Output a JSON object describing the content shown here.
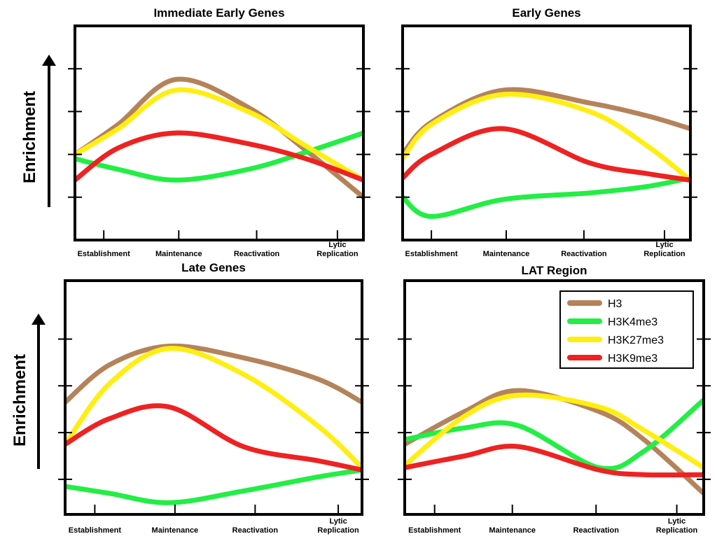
{
  "ylabel": "Enrichment",
  "legend": {
    "placement": "top-right of LAT Region panel",
    "entries": [
      {
        "name": "H3",
        "color": "#b5835a"
      },
      {
        "name": "H3K4me3",
        "color": "#22ee44"
      },
      {
        "name": "H3K27me3",
        "color": "#ffee11"
      },
      {
        "name": "H3K9me3",
        "color": "#ee2222"
      }
    ]
  },
  "chart_data": [
    {
      "type": "line",
      "title": "Immediate Early Genes",
      "xlabel": "",
      "ylabel": "Enrichment",
      "ylim": [
        0,
        5
      ],
      "categories": [
        "Establishment",
        "Maintenance",
        "Reactivation",
        "Lytic Replication"
      ],
      "x": [
        0,
        0.15,
        0.35,
        0.6,
        0.8,
        1
      ],
      "series": [
        {
          "name": "H3",
          "color": "#b5835a",
          "values": [
            2.0,
            2.7,
            3.75,
            3.1,
            2.1,
            1.0
          ]
        },
        {
          "name": "H3K4me3",
          "color": "#22ee44",
          "values": [
            1.9,
            1.65,
            1.4,
            1.65,
            2.05,
            2.5
          ]
        },
        {
          "name": "H3K27me3",
          "color": "#ffee11",
          "values": [
            2.0,
            2.6,
            3.5,
            3.0,
            2.2,
            1.4
          ]
        },
        {
          "name": "H3K9me3",
          "color": "#ee2222",
          "values": [
            1.4,
            2.15,
            2.5,
            2.25,
            1.9,
            1.4
          ]
        }
      ]
    },
    {
      "type": "line",
      "title": "Early Genes",
      "xlabel": "",
      "ylabel": "",
      "ylim": [
        0,
        5
      ],
      "categories": [
        "Establishment",
        "Maintenance",
        "Reactivation",
        "Lytic Replication"
      ],
      "x": [
        0,
        0.1,
        0.35,
        0.65,
        0.85,
        1
      ],
      "series": [
        {
          "name": "H3",
          "color": "#b5835a",
          "values": [
            2.0,
            2.75,
            3.5,
            3.2,
            2.9,
            2.6
          ]
        },
        {
          "name": "H3K4me3",
          "color": "#22ee44",
          "values": [
            1.0,
            0.55,
            0.95,
            1.1,
            1.25,
            1.45
          ]
        },
        {
          "name": "H3K27me3",
          "color": "#ffee11",
          "values": [
            1.9,
            2.7,
            3.4,
            3.0,
            2.2,
            1.4
          ]
        },
        {
          "name": "H3K9me3",
          "color": "#ee2222",
          "values": [
            1.45,
            2.0,
            2.6,
            1.8,
            1.55,
            1.4
          ]
        }
      ]
    },
    {
      "type": "line",
      "title": "Late Genes",
      "xlabel": "",
      "ylabel": "Enrichment",
      "ylim": [
        0,
        5
      ],
      "categories": [
        "Establishment",
        "Maintenance",
        "Reactivation",
        "Lytic Replication"
      ],
      "x": [
        0,
        0.15,
        0.35,
        0.6,
        0.85,
        1
      ],
      "series": [
        {
          "name": "H3",
          "color": "#b5835a",
          "values": [
            2.4,
            3.2,
            3.6,
            3.35,
            2.9,
            2.4
          ]
        },
        {
          "name": "H3K4me3",
          "color": "#22ee44",
          "values": [
            0.6,
            0.45,
            0.25,
            0.5,
            0.8,
            0.95
          ]
        },
        {
          "name": "H3K27me3",
          "color": "#ffee11",
          "values": [
            1.5,
            2.8,
            3.55,
            3.0,
            1.9,
            1.0
          ]
        },
        {
          "name": "H3K9me3",
          "color": "#ee2222",
          "values": [
            1.5,
            2.05,
            2.3,
            1.45,
            1.15,
            0.95
          ]
        }
      ]
    },
    {
      "type": "line",
      "title": "LAT Region",
      "xlabel": "",
      "ylabel": "",
      "ylim": [
        0,
        5
      ],
      "categories": [
        "Establishment",
        "Maintenance",
        "Reactivation",
        "Lytic Replication"
      ],
      "x": [
        0,
        0.2,
        0.38,
        0.65,
        0.8,
        1
      ],
      "series": [
        {
          "name": "H3",
          "color": "#b5835a",
          "values": [
            1.5,
            2.2,
            2.65,
            2.2,
            1.6,
            0.45
          ]
        },
        {
          "name": "H3K4me3",
          "color": "#22ee44",
          "values": [
            1.6,
            1.85,
            1.9,
            1.0,
            1.35,
            2.45
          ]
        },
        {
          "name": "H3K27me3",
          "color": "#ffee11",
          "values": [
            1.05,
            2.1,
            2.55,
            2.3,
            1.8,
            1.0
          ]
        },
        {
          "name": "H3K9me3",
          "color": "#ee2222",
          "values": [
            1.0,
            1.25,
            1.45,
            0.95,
            0.85,
            0.85
          ]
        }
      ]
    }
  ]
}
